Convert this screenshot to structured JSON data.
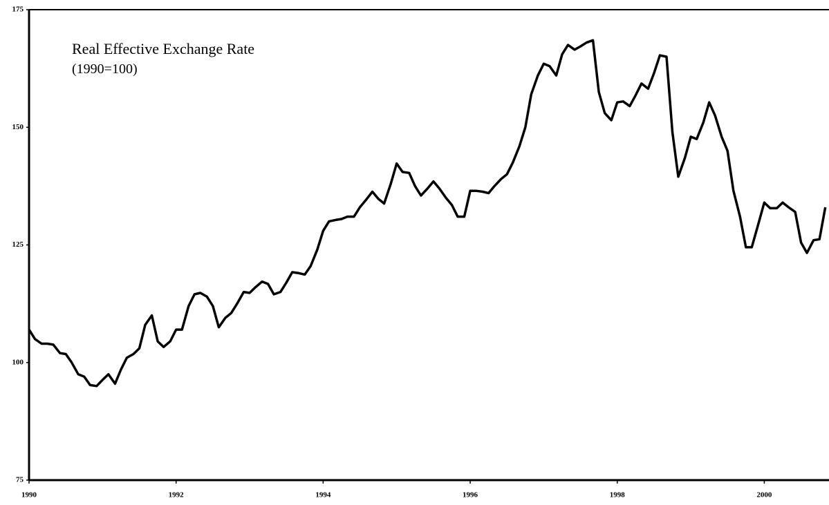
{
  "chart_data": {
    "type": "line",
    "title": "Real Effective Exchange Rate",
    "subtitle": "(1990=100)",
    "color": "#000000",
    "x": [
      1990,
      1990.08,
      1990.17,
      1990.25,
      1990.33,
      1990.42,
      1990.5,
      1990.58,
      1990.67,
      1990.75,
      1990.83,
      1990.92,
      1991,
      1991.08,
      1991.17,
      1991.25,
      1991.33,
      1991.42,
      1991.5,
      1991.58,
      1991.67,
      1991.75,
      1991.83,
      1991.92,
      1992,
      1992.08,
      1992.17,
      1992.25,
      1992.33,
      1992.42,
      1992.5,
      1992.58,
      1992.67,
      1992.75,
      1992.83,
      1992.92,
      1993,
      1993.08,
      1993.17,
      1993.25,
      1993.33,
      1993.42,
      1993.5,
      1993.58,
      1993.67,
      1993.75,
      1993.83,
      1993.92,
      1994,
      1994.08,
      1994.17,
      1994.25,
      1994.33,
      1994.42,
      1994.5,
      1994.58,
      1994.67,
      1994.75,
      1994.83,
      1994.92,
      1995,
      1995.08,
      1995.17,
      1995.25,
      1995.33,
      1995.42,
      1995.5,
      1995.58,
      1995.67,
      1995.75,
      1995.83,
      1995.92,
      1996,
      1996.08,
      1996.17,
      1996.25,
      1996.33,
      1996.42,
      1996.5,
      1996.58,
      1996.67,
      1996.75,
      1996.83,
      1996.92,
      1997,
      1997.08,
      1997.17,
      1997.25,
      1997.33,
      1997.42,
      1997.5,
      1997.58,
      1997.67,
      1997.75,
      1997.83,
      1997.92,
      1998,
      1998.08,
      1998.17,
      1998.25,
      1998.33,
      1998.42,
      1998.5,
      1998.58,
      1998.67,
      1998.75,
      1998.83,
      1998.92,
      1999,
      1999.08,
      1999.17,
      1999.25,
      1999.33,
      1999.42,
      1999.5,
      1999.58,
      1999.67,
      1999.75,
      1999.83,
      1999.92,
      2000,
      2000.08,
      2000.17,
      2000.25,
      2000.33,
      2000.42,
      2000.5,
      2000.58,
      2000.67,
      2000.75,
      2000.83
    ],
    "values": [
      107,
      105,
      104,
      104,
      103.8,
      102,
      101.8,
      100,
      97.5,
      97,
      95.2,
      95,
      96.3,
      97.5,
      95.5,
      98.5,
      101,
      101.8,
      103,
      108,
      110,
      104.5,
      103.3,
      104.5,
      107,
      107,
      112,
      114.5,
      114.8,
      114,
      112,
      107.5,
      109.5,
      110.5,
      112.5,
      115,
      114.8,
      116,
      117.2,
      116.7,
      114.5,
      115,
      117,
      119.2,
      119,
      118.7,
      120.5,
      124,
      128,
      130,
      130.3,
      130.5,
      131,
      131,
      133,
      134.5,
      136.3,
      134.8,
      133.8,
      138,
      142.3,
      140.5,
      140.3,
      137.5,
      135.5,
      137,
      138.5,
      137,
      135,
      133.5,
      131,
      131,
      136.5,
      136.5,
      136.3,
      136,
      137.5,
      139,
      140,
      142.5,
      146,
      150,
      157,
      161,
      163.5,
      163,
      161,
      165.5,
      167.5,
      166.5,
      167.2,
      168,
      168.5,
      157.5,
      153,
      151.5,
      155.3,
      155.5,
      154.5,
      156.8,
      159.3,
      158.2,
      161.5,
      165.3,
      165,
      149,
      139.5,
      143.5,
      148,
      147.5,
      151,
      155.3,
      152.5,
      148,
      145,
      136.5,
      131,
      124.5,
      124.5,
      129.5,
      134,
      132.8,
      132.8,
      134,
      133,
      132,
      125.5,
      123.3,
      126,
      126.2,
      133
    ],
    "xlim": [
      1990,
      2000.88
    ],
    "xticks": [
      1990,
      1992,
      1994,
      1996,
      1998,
      2000
    ],
    "ylim": [
      75,
      175
    ],
    "yticks": [
      75,
      100,
      125,
      150,
      175
    ]
  }
}
